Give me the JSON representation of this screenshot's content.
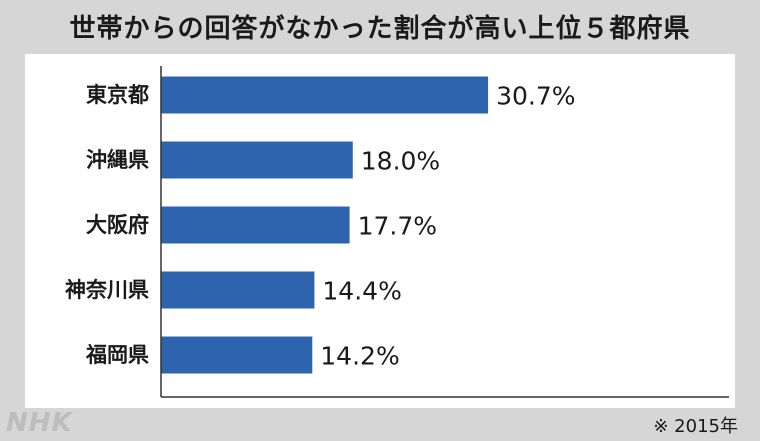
{
  "chart_data": {
    "type": "bar",
    "orientation": "horizontal",
    "title": "世帯からの回答がなかった割合が高い上位５都府県",
    "categories": [
      "東京都",
      "沖縄県",
      "大阪府",
      "神奈川県",
      "福岡県"
    ],
    "values": [
      30.7,
      18.0,
      17.7,
      14.4,
      14.2
    ],
    "value_labels": [
      "30.7%",
      "18.0%",
      "17.7%",
      "14.4%",
      "14.2%"
    ],
    "xlim": [
      0,
      52
    ],
    "grid": false,
    "bar_color": "#2e64ad"
  },
  "note": "※ 2015年",
  "logo": "NHK"
}
